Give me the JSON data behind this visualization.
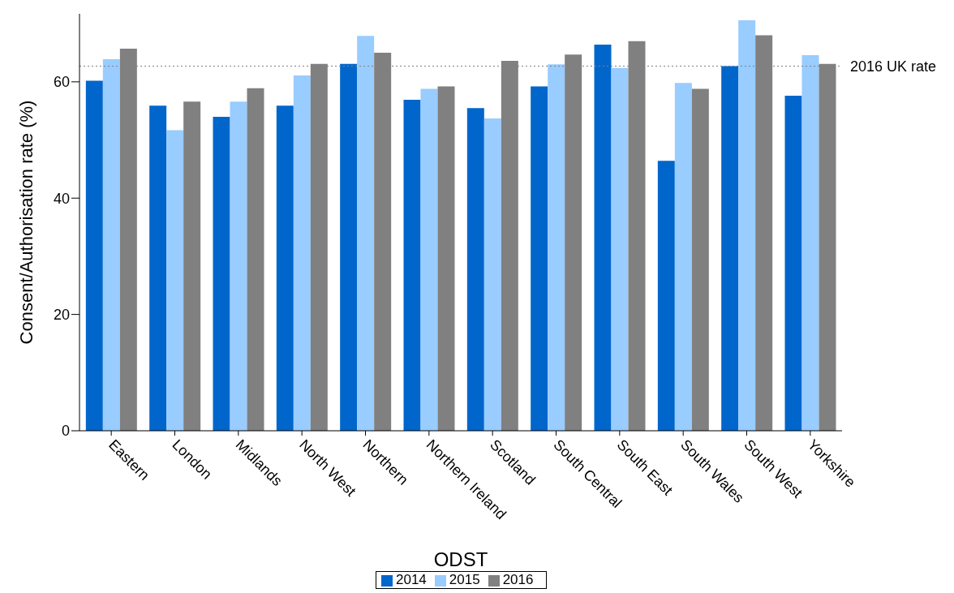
{
  "chart_data": {
    "type": "bar",
    "xlabel": "ODST",
    "ylabel": "Consent/Authorisation rate (%)",
    "categories": [
      "Eastern",
      "London",
      "Midlands",
      "North West",
      "Northern",
      "Northern Ireland",
      "Scotland",
      "South Central",
      "South East",
      "South Wales",
      "South West",
      "Yorkshire"
    ],
    "series": [
      {
        "name": "2014",
        "color": "#0066cc",
        "values": [
          60.2,
          55.9,
          54.0,
          55.9,
          63.1,
          56.9,
          55.5,
          59.2,
          66.4,
          46.4,
          62.7,
          57.6
        ]
      },
      {
        "name": "2015",
        "color": "#99ccff",
        "values": [
          63.9,
          51.7,
          56.6,
          61.1,
          67.9,
          58.8,
          53.7,
          63.0,
          62.4,
          59.8,
          70.6,
          64.6
        ]
      },
      {
        "name": "2016",
        "color": "#808080",
        "values": [
          65.7,
          56.6,
          58.9,
          63.1,
          65.0,
          59.2,
          63.6,
          64.7,
          67.0,
          58.8,
          68.0,
          63.1
        ]
      }
    ],
    "ylim": [
      0,
      71.7
    ],
    "yticks": [
      0,
      20,
      40,
      60
    ],
    "grid": false,
    "legend": "bottom",
    "ref_lines": [
      {
        "axis": "y",
        "value": 62.7,
        "label": "2016 UK rate",
        "color": "#808080",
        "line_style": "dotted"
      }
    ]
  }
}
